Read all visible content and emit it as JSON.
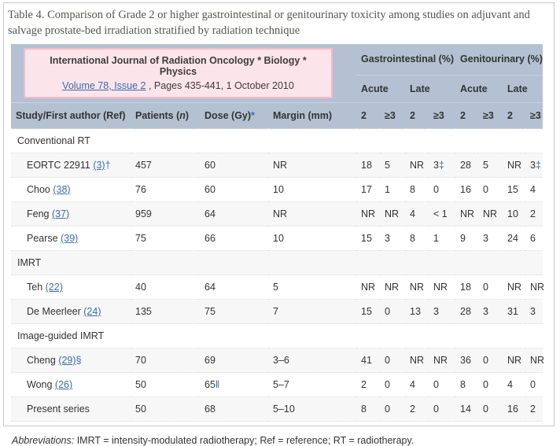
{
  "caption": "Table 4. Comparison of Grade 2 or higher gastrointestinal or genitourinary toxicity among studies on adjuvant and salvage prostate-bed irradiation stratified by radiation technique",
  "journal": {
    "name": "International Journal of Radiation Oncology * Biology * Physics",
    "volume_link": "Volume 78, Issue 2",
    "issue_info": " , Pages 435-441, 1 October 2010"
  },
  "header": {
    "gastro": "Gastrointestinal (%)",
    "genito": "Genitourinary (%)",
    "acute": "Acute",
    "late": "Late",
    "study": "Study/First author (Ref)",
    "patients_pre": "Patients (",
    "patients_n": "n",
    "patients_post": ")",
    "dose": "Dose (Gy)",
    "dose_marker": "*",
    "margin": "Margin (mm)",
    "grade2": "2",
    "grade3": "≥3"
  },
  "rows": [
    {
      "type": "section",
      "label": "Conventional RT"
    },
    {
      "type": "data",
      "study": {
        "text": "EORTC 22911 ",
        "link": "(3)",
        "marker": "†"
      },
      "patients": "457",
      "dose": "60",
      "dose_marker": "",
      "margin": "NR",
      "values": [
        "18",
        "5",
        "NR",
        "3‡",
        "28",
        "5",
        "NR",
        "3‡"
      ]
    },
    {
      "type": "data",
      "study": {
        "text": "Choo ",
        "link": "(38)",
        "marker": ""
      },
      "patients": "76",
      "dose": "60",
      "dose_marker": "",
      "margin": "10",
      "values": [
        "17",
        "1",
        "8",
        "0",
        "16",
        "0",
        "15",
        "4"
      ]
    },
    {
      "type": "data",
      "study": {
        "text": "Feng ",
        "link": "(37)",
        "marker": ""
      },
      "patients": "959",
      "dose": "64",
      "dose_marker": "",
      "margin": "NR",
      "values": [
        "NR",
        "NR",
        "4",
        "< 1",
        "NR",
        "NR",
        "10",
        "2"
      ]
    },
    {
      "type": "data",
      "study": {
        "text": "Pearse ",
        "link": "(39)",
        "marker": ""
      },
      "patients": "75",
      "dose": "66",
      "dose_marker": "",
      "margin": "10",
      "values": [
        "15",
        "3",
        "8",
        "1",
        "9",
        "3",
        "24",
        "6"
      ]
    },
    {
      "type": "section",
      "label": "IMRT"
    },
    {
      "type": "data",
      "study": {
        "text": "Teh ",
        "link": "(22)",
        "marker": ""
      },
      "patients": "40",
      "dose": "64",
      "dose_marker": "",
      "margin": "5",
      "values": [
        "NR",
        "NR",
        "NR",
        "NR",
        "18",
        "0",
        "NR",
        "NR"
      ]
    },
    {
      "type": "data",
      "study": {
        "text": "De Meerleer ",
        "link": "(24)",
        "marker": ""
      },
      "patients": "135",
      "dose": "75",
      "dose_marker": "",
      "margin": "7",
      "values": [
        "15",
        "0",
        "13",
        "3",
        "28",
        "3",
        "31",
        "3"
      ]
    },
    {
      "type": "section",
      "label": "Image-guided IMRT"
    },
    {
      "type": "data",
      "study": {
        "text": "Cheng ",
        "link": "(29)",
        "marker": "§"
      },
      "patients": "70",
      "dose": "69",
      "dose_marker": "",
      "margin": "3–6",
      "values": [
        "41",
        "0",
        "NR",
        "NR",
        "36",
        "0",
        "NR",
        "NR"
      ]
    },
    {
      "type": "data",
      "study": {
        "text": "Wong ",
        "link": "(26)",
        "marker": ""
      },
      "patients": "50",
      "dose": "65",
      "dose_marker": "‖",
      "margin": "5–7",
      "values": [
        "2",
        "0",
        "4",
        "0",
        "8",
        "0",
        "4",
        "0"
      ]
    },
    {
      "type": "data",
      "study": {
        "text": "Present series",
        "link": "",
        "marker": ""
      },
      "patients": "50",
      "dose": "68",
      "dose_marker": "",
      "margin": "5–10",
      "values": [
        "8",
        "0",
        "2",
        "0",
        "14",
        "0",
        "16",
        "2"
      ]
    }
  ],
  "footer": {
    "abbrev_label": "Abbreviations:",
    "abbrev_text": " IMRT = intensity-modulated radiotherapy; Ref = reference; RT = radiotherapy."
  },
  "colors": {
    "header_bg": "#b3c1d2",
    "banner_bg": "#fce4eb",
    "banner_border": "#f2bcca",
    "link_blue": "#3b6cb0",
    "row_shade": "#f7f7f7",
    "text": "#333333"
  }
}
